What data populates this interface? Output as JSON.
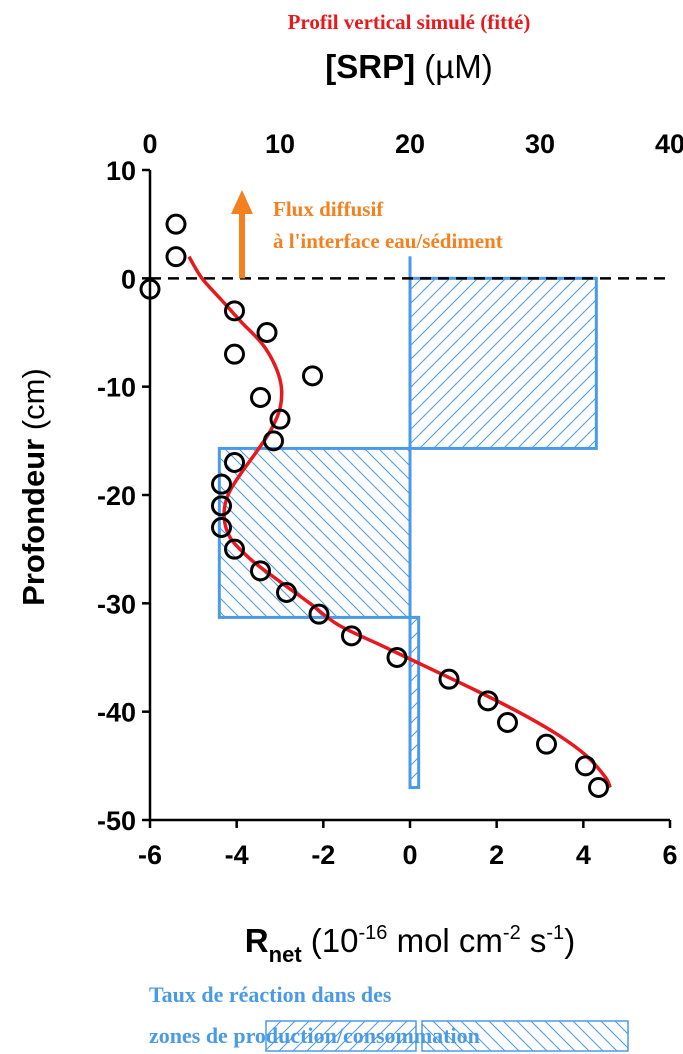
{
  "header": {
    "subtitle": "Profil vertical simulé (fitté)",
    "top_axis_label_bold": "[SRP]",
    "top_axis_label_unit": " (µM)"
  },
  "annotation": {
    "line1": "Flux diffusif",
    "line2": "à l'interface eau/sédiment"
  },
  "footer": {
    "line1": "Taux de réaction dans des",
    "line2_prefix": "zones de ",
    "box1": "production",
    "separator": "/",
    "box2": "consommation"
  },
  "colors": {
    "fit_line": "#e8191d",
    "rate_bars": "#4a9ae8",
    "arrow": "#f5801f",
    "header_text": "#e8191d",
    "annotation_text": "#f5801f",
    "footer_text": "#4a9ae8",
    "points": "#000000"
  },
  "chart_data": {
    "type": "scatter",
    "y_axis": {
      "label": "Profondeur",
      "unit": " (cm)",
      "lim": [
        -50,
        10
      ],
      "ticks": [
        10,
        0,
        -10,
        -20,
        -30,
        -40,
        -50
      ]
    },
    "x_top": {
      "label": "[SRP] (µM)",
      "lim": [
        0,
        40
      ],
      "ticks": [
        0,
        10,
        20,
        30,
        40
      ]
    },
    "x_bottom": {
      "label_main": "R",
      "label_sub": "net",
      "label_rest_a": " (10",
      "label_exp_a": "-16",
      "label_rest_b": " mol cm",
      "label_exp_b": "-2",
      "label_rest_c": " s",
      "label_exp_c": "-1",
      "label_end": ")",
      "lim": [
        -6,
        6
      ],
      "ticks": [
        -6,
        -4,
        -2,
        0,
        2,
        4,
        6
      ]
    },
    "reference_line_depth": 0,
    "srp_measured": [
      {
        "srp": 2,
        "depth": 5
      },
      {
        "srp": 2,
        "depth": 2
      },
      {
        "srp": 0,
        "depth": -1
      },
      {
        "srp": 6.5,
        "depth": -3
      },
      {
        "srp": 9,
        "depth": -5
      },
      {
        "srp": 6.5,
        "depth": -7
      },
      {
        "srp": 12.5,
        "depth": -9
      },
      {
        "srp": 8.5,
        "depth": -11
      },
      {
        "srp": 10,
        "depth": -13
      },
      {
        "srp": 9.5,
        "depth": -15
      },
      {
        "srp": 6.5,
        "depth": -17
      },
      {
        "srp": 5.5,
        "depth": -19
      },
      {
        "srp": 5.5,
        "depth": -21
      },
      {
        "srp": 5.5,
        "depth": -23
      },
      {
        "srp": 6.5,
        "depth": -25
      },
      {
        "srp": 8.5,
        "depth": -27
      },
      {
        "srp": 10.5,
        "depth": -29
      },
      {
        "srp": 13,
        "depth": -31
      },
      {
        "srp": 15.5,
        "depth": -33
      },
      {
        "srp": 19,
        "depth": -35
      },
      {
        "srp": 23,
        "depth": -37
      },
      {
        "srp": 26,
        "depth": -39
      },
      {
        "srp": 27.5,
        "depth": -41
      },
      {
        "srp": 30.5,
        "depth": -43
      },
      {
        "srp": 33.5,
        "depth": -45
      },
      {
        "srp": 34.5,
        "depth": -47
      }
    ],
    "srp_fit": [
      {
        "srp": 3,
        "depth": 2
      },
      {
        "srp": 4,
        "depth": 0
      },
      {
        "srp": 5.5,
        "depth": -2
      },
      {
        "srp": 7,
        "depth": -4
      },
      {
        "srp": 8.6,
        "depth": -6
      },
      {
        "srp": 9.6,
        "depth": -8
      },
      {
        "srp": 10.1,
        "depth": -10
      },
      {
        "srp": 10,
        "depth": -12
      },
      {
        "srp": 9.3,
        "depth": -14
      },
      {
        "srp": 8.2,
        "depth": -16
      },
      {
        "srp": 7,
        "depth": -18
      },
      {
        "srp": 6,
        "depth": -20
      },
      {
        "srp": 5.7,
        "depth": -22
      },
      {
        "srp": 6.2,
        "depth": -24
      },
      {
        "srp": 7.8,
        "depth": -26
      },
      {
        "srp": 10,
        "depth": -28
      },
      {
        "srp": 12.3,
        "depth": -30
      },
      {
        "srp": 14.5,
        "depth": -32
      },
      {
        "srp": 18,
        "depth": -34
      },
      {
        "srp": 21.5,
        "depth": -36
      },
      {
        "srp": 25,
        "depth": -38
      },
      {
        "srp": 28.3,
        "depth": -40
      },
      {
        "srp": 31.2,
        "depth": -42
      },
      {
        "srp": 33.5,
        "depth": -44
      },
      {
        "srp": 35,
        "depth": -46
      },
      {
        "srp": 35.4,
        "depth": -47
      }
    ],
    "rate_zones": [
      {
        "top": 0,
        "bottom": -15.7,
        "rate": 4.3
      },
      {
        "top": -15.7,
        "bottom": -31.3,
        "rate": -4.4
      },
      {
        "top": -31.3,
        "bottom": -47,
        "rate": 0.2
      }
    ]
  }
}
